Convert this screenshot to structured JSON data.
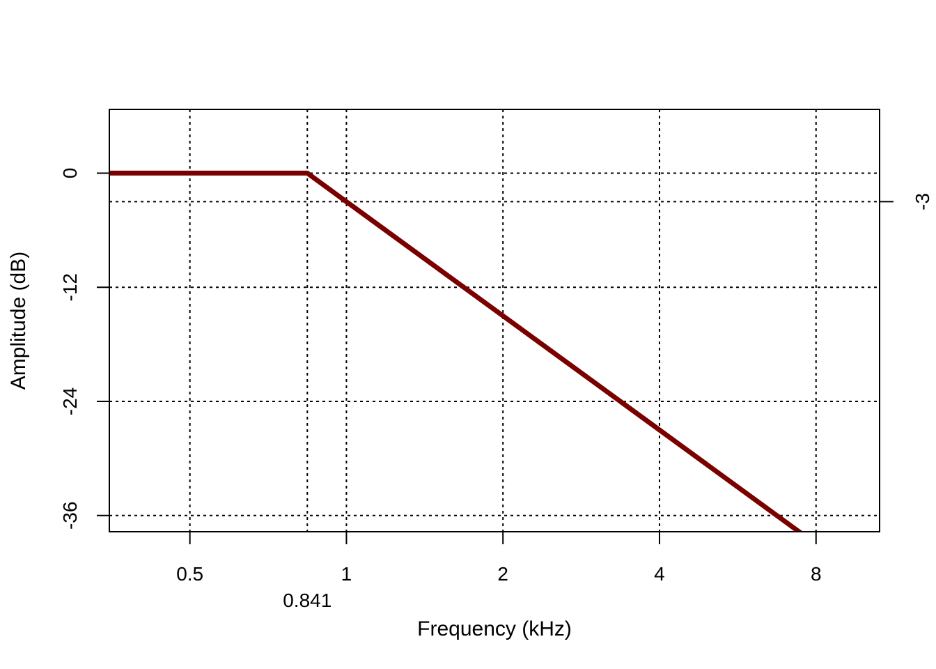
{
  "chart_data": {
    "type": "line",
    "title": "",
    "xlabel": "Frequency (kHz)",
    "ylabel": "Amplitude (dB)",
    "x_scale": "log2",
    "xlim": [
      0.35,
      10.6
    ],
    "ylim": [
      -37.7,
      6.7
    ],
    "grid": true,
    "x_ticks": [
      {
        "value": 0.5,
        "label": "0.5"
      },
      {
        "value": 1,
        "label": "1"
      },
      {
        "value": 2,
        "label": "2"
      },
      {
        "value": 4,
        "label": "4"
      },
      {
        "value": 8,
        "label": "8"
      }
    ],
    "x_extra_tick": {
      "value": 0.841,
      "label": "0.841"
    },
    "y_ticks": [
      {
        "value": 0,
        "label": "0"
      },
      {
        "value": -12,
        "label": "-12"
      },
      {
        "value": -24,
        "label": "-24"
      },
      {
        "value": -36,
        "label": "-36"
      }
    ],
    "y_right_tick": {
      "value": -3,
      "label": "-3"
    },
    "series": [
      {
        "color": "#7a0000",
        "x": [
          0.35,
          0.841,
          1,
          2,
          4,
          8,
          8.3
        ],
        "y": [
          0,
          0,
          -3,
          -15,
          -27,
          -39,
          -40.3
        ]
      }
    ]
  }
}
